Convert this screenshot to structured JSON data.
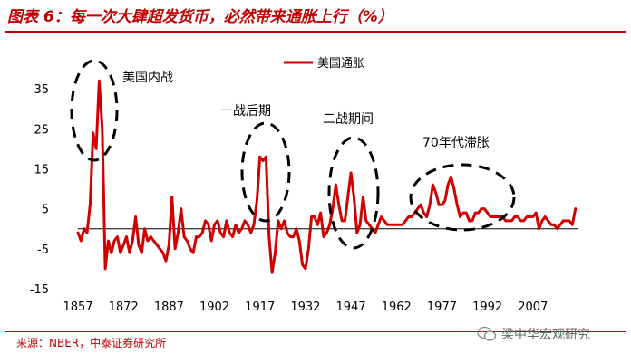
{
  "header": {
    "title": "图表 6：每一次大肆超发货币，必然带来通胀上行（%）"
  },
  "footer": {
    "source": "来源：NBER，中泰证券研究所",
    "watermark": "梁中华宏观研究"
  },
  "colors": {
    "accent": "#c00000",
    "series": "#d00000",
    "annotation": "#000000"
  },
  "chart_data": {
    "type": "line",
    "title": "",
    "xlabel": "",
    "ylabel": "",
    "xlim": [
      1857,
      2022
    ],
    "ylim": [
      -15,
      40
    ],
    "x_ticks": [
      1857,
      1872,
      1887,
      1902,
      1917,
      1932,
      1947,
      1962,
      1977,
      1992,
      2007
    ],
    "y_ticks": [
      -15,
      -5,
      5,
      15,
      25,
      35
    ],
    "legend": {
      "position": "top-center"
    },
    "series": [
      {
        "name": "美国通胀",
        "x": [
          1857,
          1858,
          1859,
          1860,
          1861,
          1862,
          1863,
          1864,
          1865,
          1866,
          1867,
          1868,
          1869,
          1870,
          1871,
          1872,
          1873,
          1874,
          1875,
          1876,
          1877,
          1878,
          1879,
          1880,
          1881,
          1882,
          1883,
          1884,
          1885,
          1886,
          1887,
          1888,
          1889,
          1890,
          1891,
          1892,
          1893,
          1894,
          1895,
          1896,
          1897,
          1898,
          1899,
          1900,
          1901,
          1902,
          1903,
          1904,
          1905,
          1906,
          1907,
          1908,
          1909,
          1910,
          1911,
          1912,
          1913,
          1914,
          1915,
          1916,
          1917,
          1918,
          1919,
          1920,
          1921,
          1922,
          1923,
          1924,
          1925,
          1926,
          1927,
          1928,
          1929,
          1930,
          1931,
          1932,
          1933,
          1934,
          1935,
          1936,
          1937,
          1938,
          1939,
          1940,
          1941,
          1942,
          1943,
          1944,
          1945,
          1946,
          1947,
          1948,
          1949,
          1950,
          1951,
          1952,
          1953,
          1954,
          1955,
          1956,
          1957,
          1958,
          1959,
          1960,
          1961,
          1962,
          1963,
          1964,
          1965,
          1966,
          1967,
          1968,
          1969,
          1970,
          1971,
          1972,
          1973,
          1974,
          1975,
          1976,
          1977,
          1978,
          1979,
          1980,
          1981,
          1982,
          1983,
          1984,
          1985,
          1986,
          1987,
          1988,
          1989,
          1990,
          1991,
          1992,
          1993,
          1994,
          1995,
          1996,
          1997,
          1998,
          1999,
          2000,
          2001,
          2002,
          2003,
          2004,
          2005,
          2006,
          2007,
          2008,
          2009,
          2010,
          2011,
          2012,
          2013,
          2014,
          2015,
          2016,
          2017,
          2018,
          2019,
          2020,
          2021
        ],
        "values": [
          -1,
          -3,
          0,
          -1,
          6,
          24,
          20,
          37,
          25,
          -10,
          -3,
          -6,
          -3,
          -2,
          -6,
          -4,
          -2,
          -6,
          -3,
          3,
          -4,
          -6,
          0,
          -3,
          -2,
          -3,
          -4,
          -5,
          -6,
          -8,
          -4,
          8,
          -5,
          -1,
          5,
          -2,
          -3,
          -5,
          -6,
          -2,
          -2,
          -1,
          2,
          1,
          -3,
          1,
          2,
          -1,
          -2,
          2,
          -1,
          -2,
          1,
          -1,
          0,
          2,
          1,
          -1,
          1,
          7,
          18,
          17,
          18,
          -2,
          -11,
          -6,
          2,
          0,
          2,
          -1,
          -2,
          -2,
          0,
          -3,
          -9,
          -10,
          -5,
          3,
          3,
          1,
          4,
          -2,
          -1,
          1,
          5,
          11,
          6,
          2,
          2,
          8,
          14,
          8,
          -1,
          1,
          8,
          2,
          1,
          0,
          -1,
          1,
          3,
          2,
          1,
          1,
          1,
          1,
          1,
          1,
          2,
          3,
          3,
          4,
          5,
          6,
          4,
          3,
          6,
          11,
          9,
          6,
          6,
          7,
          11,
          13,
          10,
          6,
          3,
          4,
          4,
          2,
          2,
          4,
          4,
          5,
          5,
          4,
          3,
          3,
          3,
          3,
          3,
          2,
          2,
          2,
          3,
          3,
          2,
          2,
          3,
          3,
          3,
          4,
          0,
          2,
          3,
          2,
          1,
          1,
          0,
          1,
          2,
          2,
          2,
          1,
          5
        ]
      }
    ],
    "annotations": [
      "美国内战",
      "一战后期",
      "二战期间",
      "70年代滞胀"
    ]
  }
}
